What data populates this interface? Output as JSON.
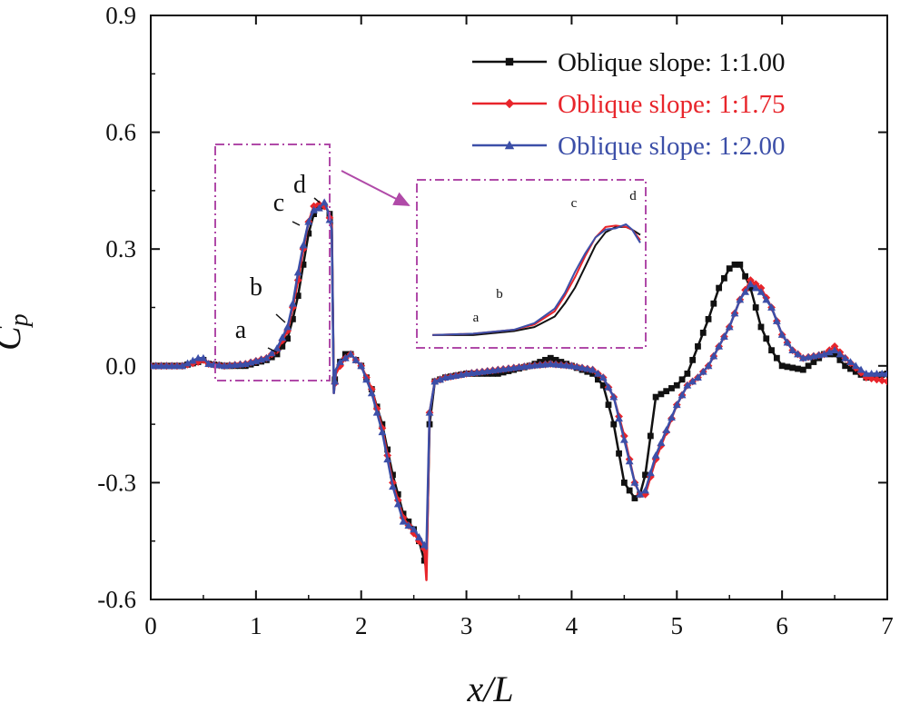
{
  "chart_data": {
    "type": "line",
    "title": "",
    "xlabel": "x/L",
    "ylabel": "C_p",
    "ylabel_main": "C",
    "ylabel_sub": "p",
    "xlabel_x": "x",
    "xlabel_rest": "/L",
    "xlim": [
      0,
      7
    ],
    "ylim": [
      -0.6,
      0.9
    ],
    "xticks": [
      "0",
      "1",
      "2",
      "3",
      "4",
      "5",
      "6",
      "7"
    ],
    "yticks": [
      "-0.6",
      "-0.3",
      "0.0",
      "0.3",
      "0.6",
      "0.9"
    ],
    "legend_position": "top-right",
    "annotations": [
      "a",
      "b",
      "c",
      "d"
    ],
    "inset_annotations": [
      "a",
      "b",
      "c",
      "d"
    ],
    "inset_zoom_range": {
      "x": [
        0.65,
        1.72
      ],
      "y": [
        -0.035,
        0.575
      ]
    },
    "series": [
      {
        "name": "Oblique slope: 1:1.00",
        "color": "#111111",
        "marker": "square",
        "x": [
          0,
          0.3,
          0.45,
          0.5,
          0.55,
          0.7,
          0.9,
          1.1,
          1.2,
          1.3,
          1.35,
          1.4,
          1.45,
          1.5,
          1.55,
          1.6,
          1.65,
          1.68,
          1.72,
          1.74,
          1.76,
          1.8,
          1.85,
          1.9,
          2.0,
          2.1,
          2.2,
          2.3,
          2.4,
          2.5,
          2.55,
          2.6,
          2.62,
          2.65,
          2.7,
          2.8,
          3.0,
          3.3,
          3.6,
          3.8,
          4.0,
          4.2,
          4.3,
          4.4,
          4.5,
          4.6,
          4.65,
          4.7,
          4.8,
          5.0,
          5.1,
          5.2,
          5.3,
          5.4,
          5.5,
          5.55,
          5.6,
          5.7,
          5.8,
          5.9,
          6.0,
          6.2,
          6.4,
          6.5,
          6.6,
          6.8,
          7.0
        ],
        "y": [
          0.0,
          0.0,
          0.01,
          0.015,
          0.005,
          0.0,
          0.0,
          0.015,
          0.03,
          0.07,
          0.12,
          0.18,
          0.26,
          0.34,
          0.39,
          0.41,
          0.41,
          0.4,
          0.38,
          -0.06,
          -0.01,
          0.01,
          0.03,
          0.03,
          0.0,
          -0.06,
          -0.15,
          -0.28,
          -0.38,
          -0.42,
          -0.45,
          -0.5,
          -0.52,
          -0.15,
          -0.04,
          -0.03,
          -0.02,
          -0.02,
          0.0,
          0.02,
          0.0,
          -0.02,
          -0.05,
          -0.15,
          -0.3,
          -0.34,
          -0.33,
          -0.28,
          -0.08,
          -0.05,
          -0.02,
          0.05,
          0.12,
          0.2,
          0.25,
          0.26,
          0.26,
          0.2,
          0.1,
          0.04,
          0.0,
          -0.01,
          0.03,
          0.03,
          0.0,
          -0.03,
          -0.02
        ]
      },
      {
        "name": "Oblique slope: 1:1.75",
        "color": "#e8252b",
        "marker": "diamond",
        "x": [
          0,
          0.3,
          0.45,
          0.5,
          0.55,
          0.7,
          0.9,
          1.1,
          1.2,
          1.3,
          1.35,
          1.4,
          1.45,
          1.5,
          1.55,
          1.6,
          1.65,
          1.68,
          1.72,
          1.74,
          1.76,
          1.8,
          1.85,
          1.9,
          2.0,
          2.1,
          2.2,
          2.3,
          2.4,
          2.5,
          2.55,
          2.6,
          2.62,
          2.65,
          2.7,
          2.8,
          3.0,
          3.3,
          3.6,
          3.8,
          4.0,
          4.2,
          4.3,
          4.4,
          4.5,
          4.6,
          4.65,
          4.7,
          4.8,
          5.0,
          5.1,
          5.2,
          5.3,
          5.4,
          5.5,
          5.6,
          5.7,
          5.8,
          5.9,
          6.0,
          6.1,
          6.2,
          6.4,
          6.5,
          6.6,
          6.8,
          7.0
        ],
        "y": [
          0.0,
          0.0,
          0.01,
          0.015,
          0.005,
          0.0,
          0.005,
          0.02,
          0.04,
          0.09,
          0.15,
          0.22,
          0.3,
          0.37,
          0.41,
          0.415,
          0.41,
          0.4,
          0.36,
          -0.07,
          -0.02,
          0.0,
          0.02,
          0.03,
          0.0,
          -0.06,
          -0.16,
          -0.3,
          -0.39,
          -0.43,
          -0.45,
          -0.47,
          -0.55,
          -0.12,
          -0.04,
          -0.03,
          -0.02,
          -0.01,
          0.0,
          0.005,
          0.0,
          -0.01,
          -0.03,
          -0.08,
          -0.18,
          -0.3,
          -0.33,
          -0.33,
          -0.24,
          -0.1,
          -0.05,
          -0.03,
          0.0,
          0.05,
          0.1,
          0.17,
          0.22,
          0.2,
          0.15,
          0.08,
          0.04,
          0.02,
          0.03,
          0.05,
          0.02,
          -0.03,
          -0.04
        ]
      },
      {
        "name": "Oblique slope: 1:2.00",
        "color": "#3c4fa8",
        "marker": "triangle",
        "x": [
          0,
          0.3,
          0.45,
          0.5,
          0.55,
          0.7,
          0.9,
          1.1,
          1.2,
          1.3,
          1.35,
          1.4,
          1.45,
          1.5,
          1.55,
          1.6,
          1.65,
          1.68,
          1.72,
          1.74,
          1.76,
          1.8,
          1.85,
          1.9,
          2.0,
          2.1,
          2.2,
          2.3,
          2.4,
          2.5,
          2.55,
          2.6,
          2.62,
          2.65,
          2.7,
          2.8,
          3.0,
          3.3,
          3.6,
          3.8,
          4.0,
          4.2,
          4.3,
          4.4,
          4.5,
          4.6,
          4.65,
          4.7,
          4.8,
          5.0,
          5.1,
          5.2,
          5.3,
          5.4,
          5.5,
          5.6,
          5.7,
          5.8,
          5.9,
          6.0,
          6.1,
          6.2,
          6.4,
          6.5,
          6.6,
          6.8,
          7.0
        ],
        "y": [
          0.0,
          0.0,
          0.02,
          0.02,
          0.005,
          0.0,
          0.005,
          0.02,
          0.045,
          0.1,
          0.16,
          0.24,
          0.31,
          0.37,
          0.4,
          0.405,
          0.42,
          0.4,
          0.35,
          -0.07,
          -0.01,
          0.01,
          0.02,
          0.03,
          0.0,
          -0.07,
          -0.17,
          -0.31,
          -0.4,
          -0.42,
          -0.44,
          -0.46,
          -0.47,
          -0.12,
          -0.04,
          -0.03,
          -0.02,
          -0.01,
          0.0,
          0.005,
          0.0,
          -0.01,
          -0.03,
          -0.08,
          -0.19,
          -0.3,
          -0.33,
          -0.32,
          -0.23,
          -0.1,
          -0.05,
          -0.03,
          0.0,
          0.05,
          0.1,
          0.17,
          0.21,
          0.19,
          0.15,
          0.08,
          0.04,
          0.02,
          0.03,
          0.04,
          0.02,
          -0.02,
          -0.02
        ]
      }
    ]
  }
}
